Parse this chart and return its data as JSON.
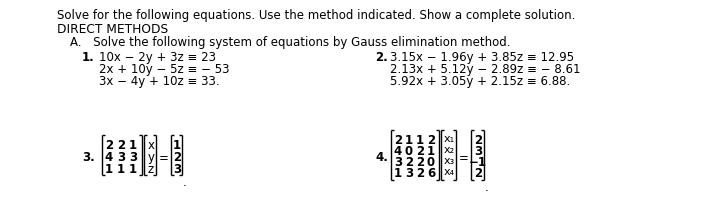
{
  "bg_color": "#ffffff",
  "text_color": "#000000",
  "header": "Solve for the following equations. Use the method indicated. Show a complete solution.",
  "section": "DIRECT METHODS",
  "subsection": "A. Solve the following system of equations by Gauss elimination method.",
  "p1_label": "1.",
  "p1_eq1": "10x − 2y + 3z ≡ 23",
  "p1_eq2": "2x + 10y − 5z ≡ − 53",
  "p1_eq3": "3x − 4y + 10z ≡ 33.",
  "p2_label": "2.",
  "p2_eq1": "3.15x − 1.96y + 3.85z ≡ 12.95",
  "p2_eq2": "2.13x + 5.12y − 2.89z ≡ − 8.61",
  "p2_eq3": "5.92x + 3.05y + 2.15z ≡ 6.88.",
  "p3_label": "3.",
  "p3_matrix": [
    [
      "2",
      "2",
      "1"
    ],
    [
      "4",
      "3",
      "3"
    ],
    [
      "1",
      "1",
      "1"
    ]
  ],
  "p3_vec": [
    "x",
    "y",
    "z"
  ],
  "p3_rhs": [
    "1",
    "2",
    "3"
  ],
  "p4_label": "4.",
  "p4_matrix": [
    [
      "2",
      "1",
      "1",
      "2"
    ],
    [
      "4",
      "0",
      "2",
      "1"
    ],
    [
      "3",
      "2",
      "2",
      "0"
    ],
    [
      "1",
      "3",
      "2",
      "6"
    ]
  ],
  "p4_vec": [
    "x₁",
    "x₂",
    "x₃",
    "x₄"
  ],
  "p4_rhs": [
    "2",
    "3",
    "−1",
    "2"
  ]
}
